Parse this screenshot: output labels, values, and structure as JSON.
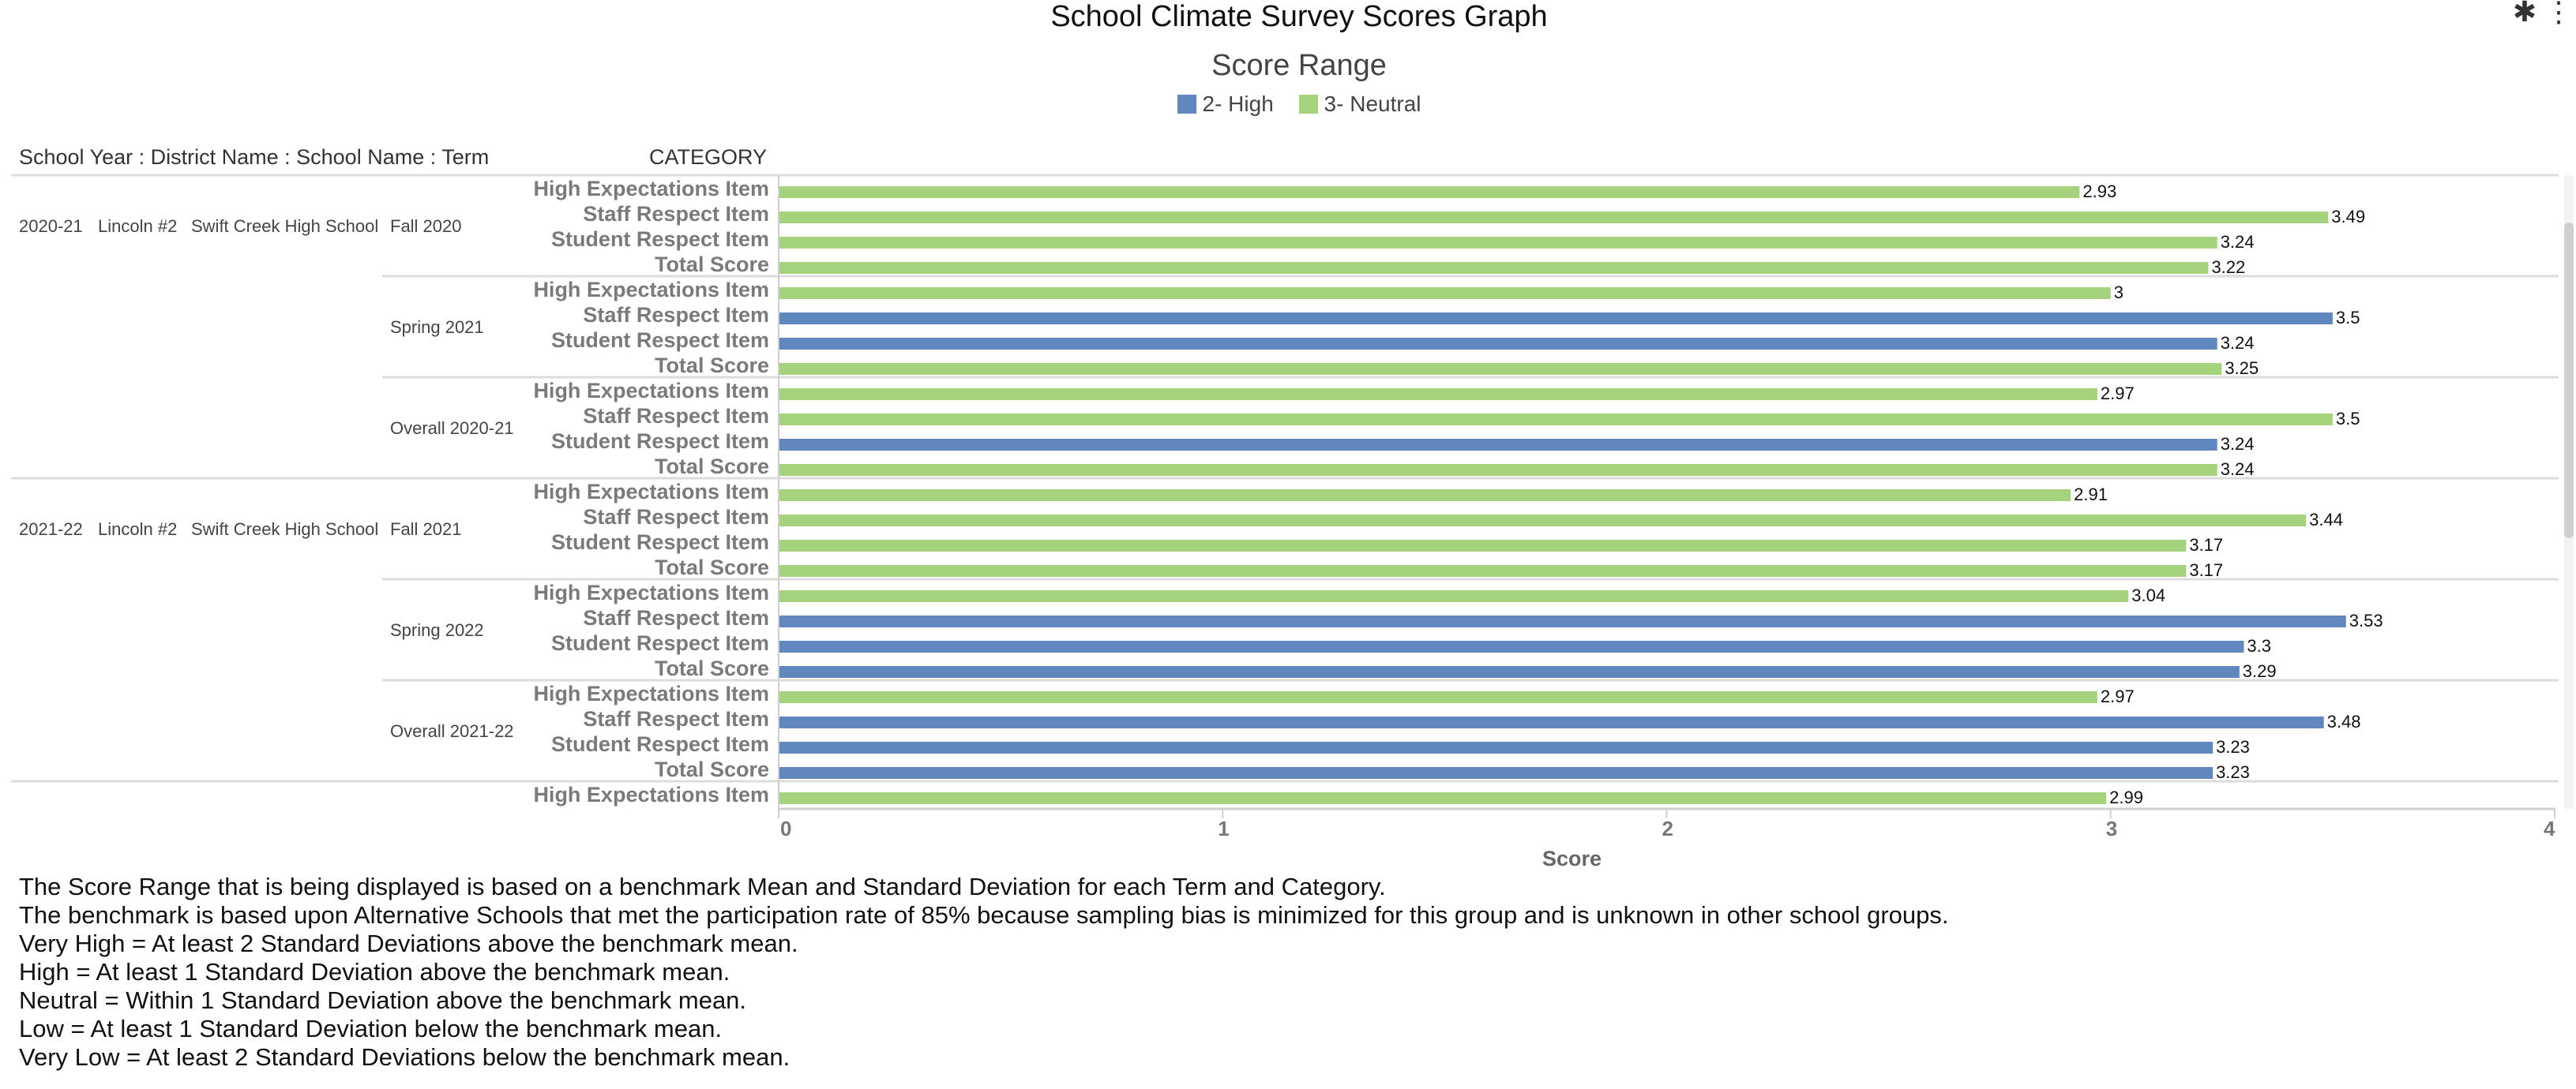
{
  "title": "School Climate Survey Scores Graph",
  "corner_icons": "✱ ⋮",
  "legend": {
    "title": "Score Range",
    "items": [
      {
        "label": "2- High",
        "color": "#6088bf"
      },
      {
        "label": "3- Neutral",
        "color": "#a5d27d"
      }
    ]
  },
  "table_header": {
    "left": "School Year : District Name : School Name : Term",
    "category": "CATEGORY"
  },
  "chart_data": {
    "type": "bar",
    "orientation": "horizontal",
    "xlabel": "Score",
    "xlim": [
      0,
      4
    ],
    "x_ticks": [
      0,
      1,
      2,
      3,
      4
    ],
    "series": [
      {
        "name": "2- High",
        "color": "#6088bf"
      },
      {
        "name": "3- Neutral",
        "color": "#a5d27d"
      }
    ],
    "groups": [
      {
        "year": "2020-21",
        "district": "Lincoln #2",
        "school": "Swift Creek High School",
        "terms": [
          {
            "term": "Fall 2020",
            "items": [
              {
                "category": "High Expectations Item",
                "value": 2.93,
                "range": "3- Neutral"
              },
              {
                "category": "Staff Respect Item",
                "value": 3.49,
                "range": "3- Neutral"
              },
              {
                "category": "Student Respect Item",
                "value": 3.24,
                "range": "3- Neutral"
              },
              {
                "category": "Total Score",
                "value": 3.22,
                "range": "3- Neutral"
              }
            ]
          },
          {
            "term": "Spring 2021",
            "items": [
              {
                "category": "High Expectations Item",
                "value": 3,
                "range": "3- Neutral"
              },
              {
                "category": "Staff Respect Item",
                "value": 3.5,
                "range": "2- High"
              },
              {
                "category": "Student Respect Item",
                "value": 3.24,
                "range": "2- High"
              },
              {
                "category": "Total Score",
                "value": 3.25,
                "range": "3- Neutral"
              }
            ]
          },
          {
            "term": "Overall 2020-21",
            "items": [
              {
                "category": "High Expectations Item",
                "value": 2.97,
                "range": "3- Neutral"
              },
              {
                "category": "Staff Respect Item",
                "value": 3.5,
                "range": "3- Neutral"
              },
              {
                "category": "Student Respect Item",
                "value": 3.24,
                "range": "2- High"
              },
              {
                "category": "Total Score",
                "value": 3.24,
                "range": "3- Neutral"
              }
            ]
          }
        ]
      },
      {
        "year": "2021-22",
        "district": "Lincoln #2",
        "school": "Swift Creek High School",
        "terms": [
          {
            "term": "Fall 2021",
            "items": [
              {
                "category": "High Expectations Item",
                "value": 2.91,
                "range": "3- Neutral"
              },
              {
                "category": "Staff Respect Item",
                "value": 3.44,
                "range": "3- Neutral"
              },
              {
                "category": "Student Respect Item",
                "value": 3.17,
                "range": "3- Neutral"
              },
              {
                "category": "Total Score",
                "value": 3.17,
                "range": "3- Neutral"
              }
            ]
          },
          {
            "term": "Spring 2022",
            "items": [
              {
                "category": "High Expectations Item",
                "value": 3.04,
                "range": "3- Neutral"
              },
              {
                "category": "Staff Respect Item",
                "value": 3.53,
                "range": "2- High"
              },
              {
                "category": "Student Respect Item",
                "value": 3.3,
                "range": "2- High"
              },
              {
                "category": "Total Score",
                "value": 3.29,
                "range": "2- High"
              }
            ]
          },
          {
            "term": "Overall 2021-22",
            "items": [
              {
                "category": "High Expectations Item",
                "value": 2.97,
                "range": "3- Neutral"
              },
              {
                "category": "Staff Respect Item",
                "value": 3.48,
                "range": "2- High"
              },
              {
                "category": "Student Respect Item",
                "value": 3.23,
                "range": "2- High"
              },
              {
                "category": "Total Score",
                "value": 3.23,
                "range": "2- High"
              }
            ]
          }
        ]
      },
      {
        "year": "",
        "district": "",
        "school": "",
        "terms": [
          {
            "term": "",
            "items": [
              {
                "category": "High Expectations Item",
                "value": 2.99,
                "range": "3- Neutral"
              }
            ]
          }
        ]
      }
    ]
  },
  "notes": [
    "The Score Range that is being displayed is based on a benchmark Mean and Standard Deviation for each Term and Category.",
    "The benchmark is based upon Alternative Schools that met the participation rate of 85% because sampling bias is minimized for this group and is unknown in other school groups.",
    "Very High = At least 2 Standard Deviations above the benchmark mean.",
    "High = At least 1 Standard Deviation above the benchmark mean.",
    "Neutral = Within 1 Standard Deviation above the benchmark mean.",
    "Low = At least 1 Standard Deviation below the benchmark mean.",
    "Very Low = At least 2 Standard Deviations below the benchmark mean."
  ]
}
